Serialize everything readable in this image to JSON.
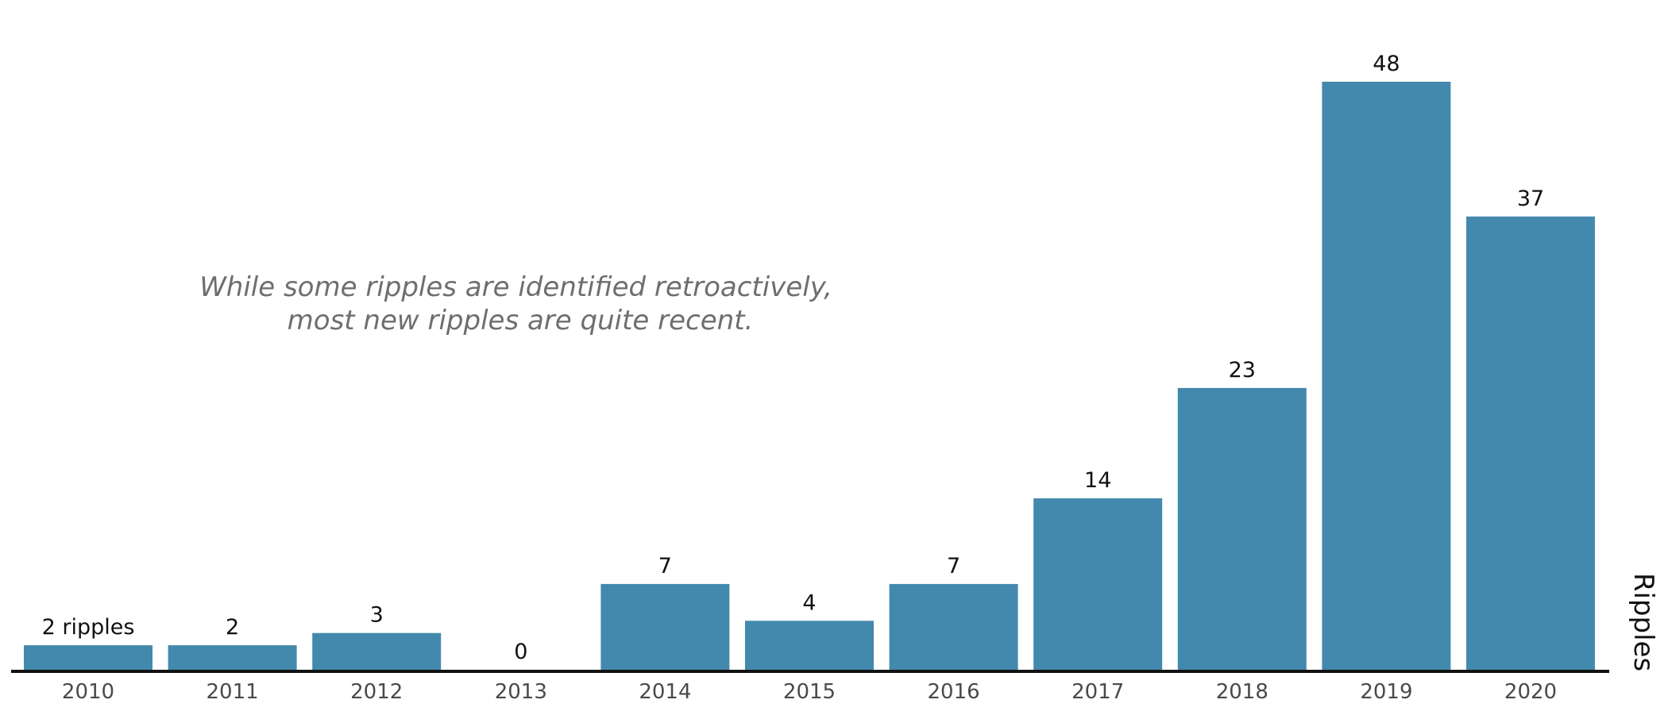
{
  "chart_data": {
    "type": "bar",
    "categories": [
      "2010",
      "2011",
      "2012",
      "2013",
      "2014",
      "2015",
      "2016",
      "2017",
      "2018",
      "2019",
      "2020"
    ],
    "values": [
      2,
      2,
      3,
      0,
      7,
      4,
      7,
      14,
      23,
      48,
      37
    ],
    "value_labels": [
      "2 ripples",
      "2",
      "3",
      "0",
      "7",
      "4",
      "7",
      "14",
      "23",
      "48",
      "37"
    ],
    "title": "",
    "xlabel": "",
    "ylabel": "Ripples",
    "ylim": [
      0,
      48
    ],
    "grid": false,
    "bar_color": "#4389ad",
    "annotation": [
      "While some ripples are identified retroactively,",
      "most new ripples are quite recent."
    ]
  }
}
